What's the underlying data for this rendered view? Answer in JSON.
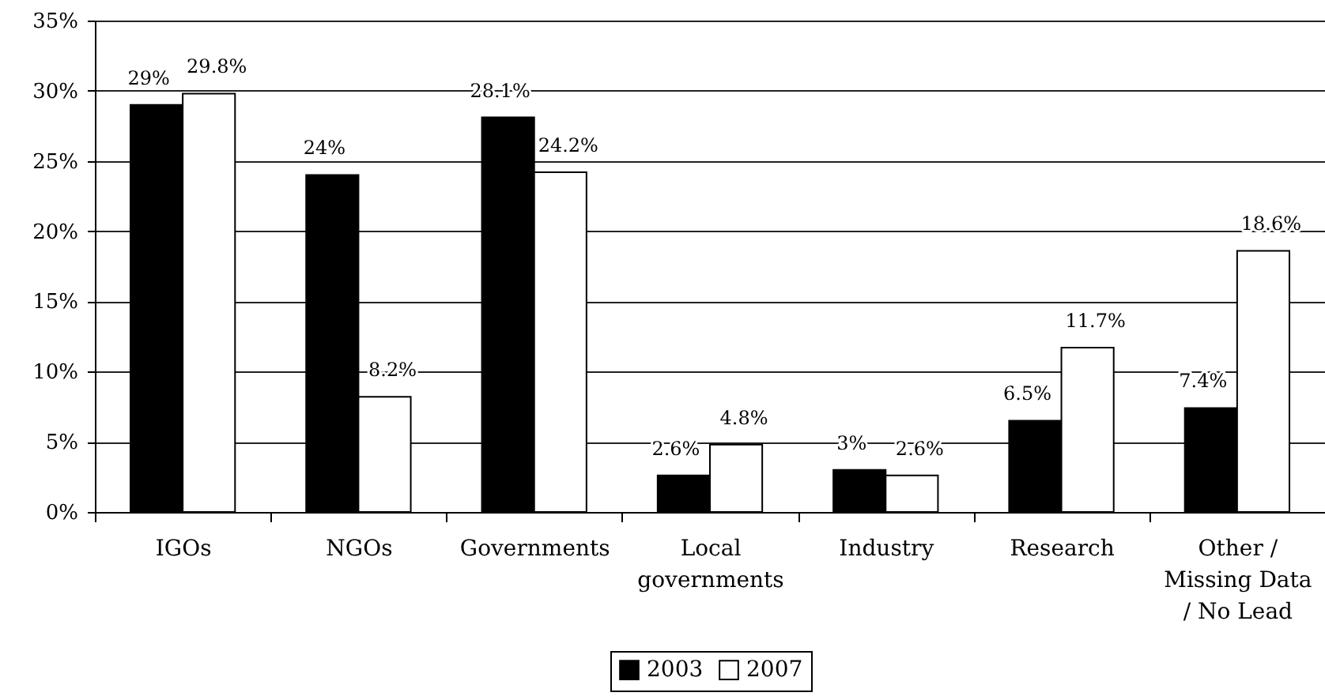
{
  "chart_data": {
    "type": "bar",
    "categories": [
      "IGOs",
      "NGOs",
      "Governments",
      "Local governments",
      "Industry",
      "Research",
      "Other / Missing Data / No Lead"
    ],
    "series": [
      {
        "name": "2003",
        "color": "#000000",
        "values": [
          29,
          24,
          28.1,
          2.6,
          3,
          6.5,
          7.4
        ],
        "value_labels": [
          "29%",
          "24%",
          "28.1%",
          "2.6%",
          "3%",
          "6.5%",
          "7.4%"
        ]
      },
      {
        "name": "2007",
        "color": "#ffffff",
        "values": [
          29.8,
          8.2,
          24.2,
          4.8,
          2.6,
          11.7,
          18.6
        ],
        "value_labels": [
          "29.8%",
          "8.2%",
          "24.2%",
          "4.8%",
          "2.6%",
          "11.7%",
          "18.6%"
        ]
      }
    ],
    "ylim": [
      0,
      35
    ],
    "yticks": [
      {
        "value": 0,
        "label": "0%"
      },
      {
        "value": 5,
        "label": "5%"
      },
      {
        "value": 10,
        "label": "10%"
      },
      {
        "value": 15,
        "label": "15%"
      },
      {
        "value": 20,
        "label": "20%"
      },
      {
        "value": 25,
        "label": "25%"
      },
      {
        "value": 30,
        "label": "30%"
      },
      {
        "value": 35,
        "label": "35%"
      }
    ],
    "grid": "y",
    "legend": "bottom"
  }
}
